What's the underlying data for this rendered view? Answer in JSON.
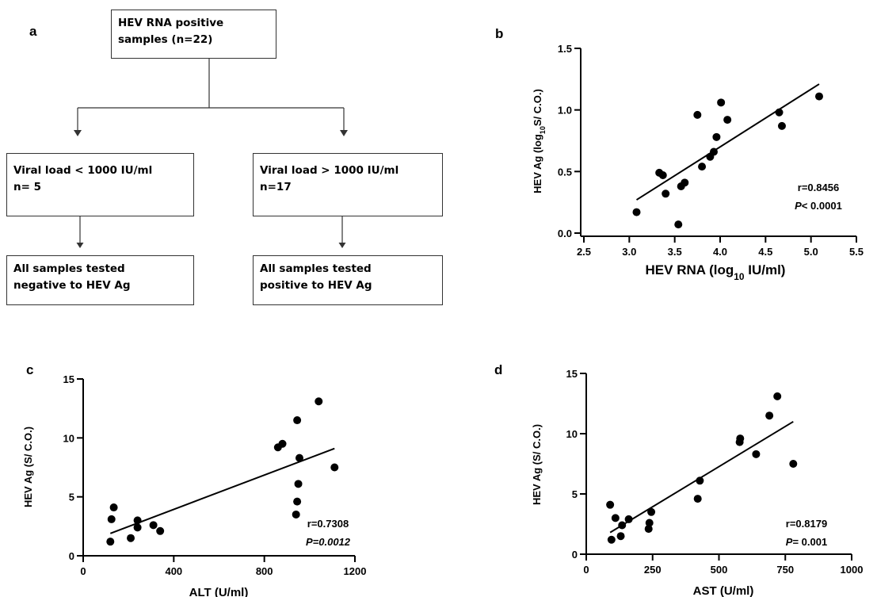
{
  "panels": {
    "a": "a",
    "b": "b",
    "c": "c",
    "d": "d"
  },
  "flowchart": {
    "top_box": {
      "line1": "HEV RNA positive",
      "line2": "samples (n=22)"
    },
    "left_box": {
      "line1": "Viral load < 1000 IU/ml",
      "line2": "n= 5"
    },
    "right_box": {
      "line1": "Viral load > 1000 IU/ml",
      "line2": "n=17"
    },
    "left_result": {
      "line1": "All samples tested",
      "line2": "negative to HEV Ag"
    },
    "right_result": {
      "line1": "All samples tested",
      "line2": "positive to HEV Ag"
    }
  },
  "colors": {
    "points": "#000000",
    "axis": "#000000"
  },
  "chart_data": [
    {
      "id": "b",
      "type": "scatter",
      "xlabel_main": "HEV RNA (log",
      "xlabel_sub": "10",
      "xlabel_end": " IU/ml)",
      "ylabel_main": "HEV Ag (log",
      "ylabel_sub": "10",
      "ylabel_end": "S/ C.O.)",
      "xlim": [
        2.5,
        5.5
      ],
      "ylim": [
        0,
        1.5
      ],
      "xticks": [
        2.5,
        3.0,
        3.5,
        4.0,
        4.5,
        5.0,
        5.5
      ],
      "xtick_labels": [
        "2.5",
        "3.0",
        "3.5",
        "4.0",
        "4.5",
        "5.0",
        "5.5"
      ],
      "yticks": [
        0.0,
        0.5,
        1.0,
        1.5
      ],
      "ytick_labels": [
        "0.0",
        "0.5",
        "1.0",
        "1.5"
      ],
      "points": [
        [
          3.08,
          0.17
        ],
        [
          3.33,
          0.49
        ],
        [
          3.37,
          0.47
        ],
        [
          3.4,
          0.32
        ],
        [
          3.54,
          0.07
        ],
        [
          3.57,
          0.38
        ],
        [
          3.61,
          0.41
        ],
        [
          3.75,
          0.96
        ],
        [
          3.8,
          0.54
        ],
        [
          3.89,
          0.62
        ],
        [
          3.93,
          0.66
        ],
        [
          3.96,
          0.78
        ],
        [
          4.01,
          1.06
        ],
        [
          4.08,
          0.92
        ],
        [
          4.65,
          0.98
        ],
        [
          4.68,
          0.87
        ],
        [
          5.09,
          1.11
        ]
      ],
      "fit": [
        [
          3.08,
          0.27
        ],
        [
          5.09,
          1.21
        ]
      ],
      "stat_r": "r=0.8456",
      "stat_p_italic": "P",
      "stat_p_rest": "< 0.0001"
    },
    {
      "id": "c",
      "type": "scatter",
      "xlabel_main": "ALT (U/ml)",
      "ylabel_main": "HEV Ag (S/ C.O.)",
      "xlim": [
        0,
        1200
      ],
      "ylim": [
        0,
        15
      ],
      "xticks": [
        0,
        400,
        800,
        1200
      ],
      "xtick_labels": [
        "0",
        "400",
        "800",
        "1200"
      ],
      "yticks": [
        0,
        5,
        10,
        15
      ],
      "ytick_labels": [
        "0",
        "5",
        "10",
        "15"
      ],
      "points": [
        [
          120,
          1.2
        ],
        [
          125,
          3.1
        ],
        [
          135,
          4.1
        ],
        [
          210,
          1.5
        ],
        [
          240,
          3.0
        ],
        [
          240,
          2.4
        ],
        [
          310,
          2.6
        ],
        [
          340,
          2.1
        ],
        [
          860,
          9.2
        ],
        [
          880,
          9.5
        ],
        [
          945,
          11.5
        ],
        [
          955,
          8.3
        ],
        [
          950,
          6.1
        ],
        [
          945,
          4.6
        ],
        [
          940,
          3.5
        ],
        [
          1040,
          13.1
        ],
        [
          1110,
          7.5
        ]
      ],
      "fit": [
        [
          120,
          1.9
        ],
        [
          1110,
          9.1
        ]
      ],
      "stat_r": "r=0.7308",
      "stat_p_italic": "P=0.0012",
      "stat_p_rest": ""
    },
    {
      "id": "d",
      "type": "scatter",
      "xlabel_main": "AST (U/ml)",
      "ylabel_main": "HEV Ag (S/ C.O.)",
      "xlim": [
        0,
        1000
      ],
      "ylim": [
        0,
        15
      ],
      "xticks": [
        0,
        250,
        500,
        750,
        1000
      ],
      "xtick_labels": [
        "0",
        "250",
        "500",
        "750",
        "1000"
      ],
      "yticks": [
        0,
        5,
        10,
        15
      ],
      "ytick_labels": [
        "0",
        "5",
        "10",
        "15"
      ],
      "points": [
        [
          90,
          4.1
        ],
        [
          95,
          1.2
        ],
        [
          110,
          3.0
        ],
        [
          130,
          1.5
        ],
        [
          135,
          2.4
        ],
        [
          160,
          2.9
        ],
        [
          235,
          2.1
        ],
        [
          238,
          2.6
        ],
        [
          245,
          3.5
        ],
        [
          420,
          4.6
        ],
        [
          428,
          6.1
        ],
        [
          578,
          9.3
        ],
        [
          580,
          9.6
        ],
        [
          640,
          8.3
        ],
        [
          690,
          11.5
        ],
        [
          720,
          13.1
        ],
        [
          780,
          7.5
        ]
      ],
      "fit": [
        [
          90,
          1.8
        ],
        [
          780,
          11.0
        ]
      ],
      "stat_r": "r=0.8179",
      "stat_p_italic": "P",
      "stat_p_rest": "= 0.001"
    }
  ]
}
